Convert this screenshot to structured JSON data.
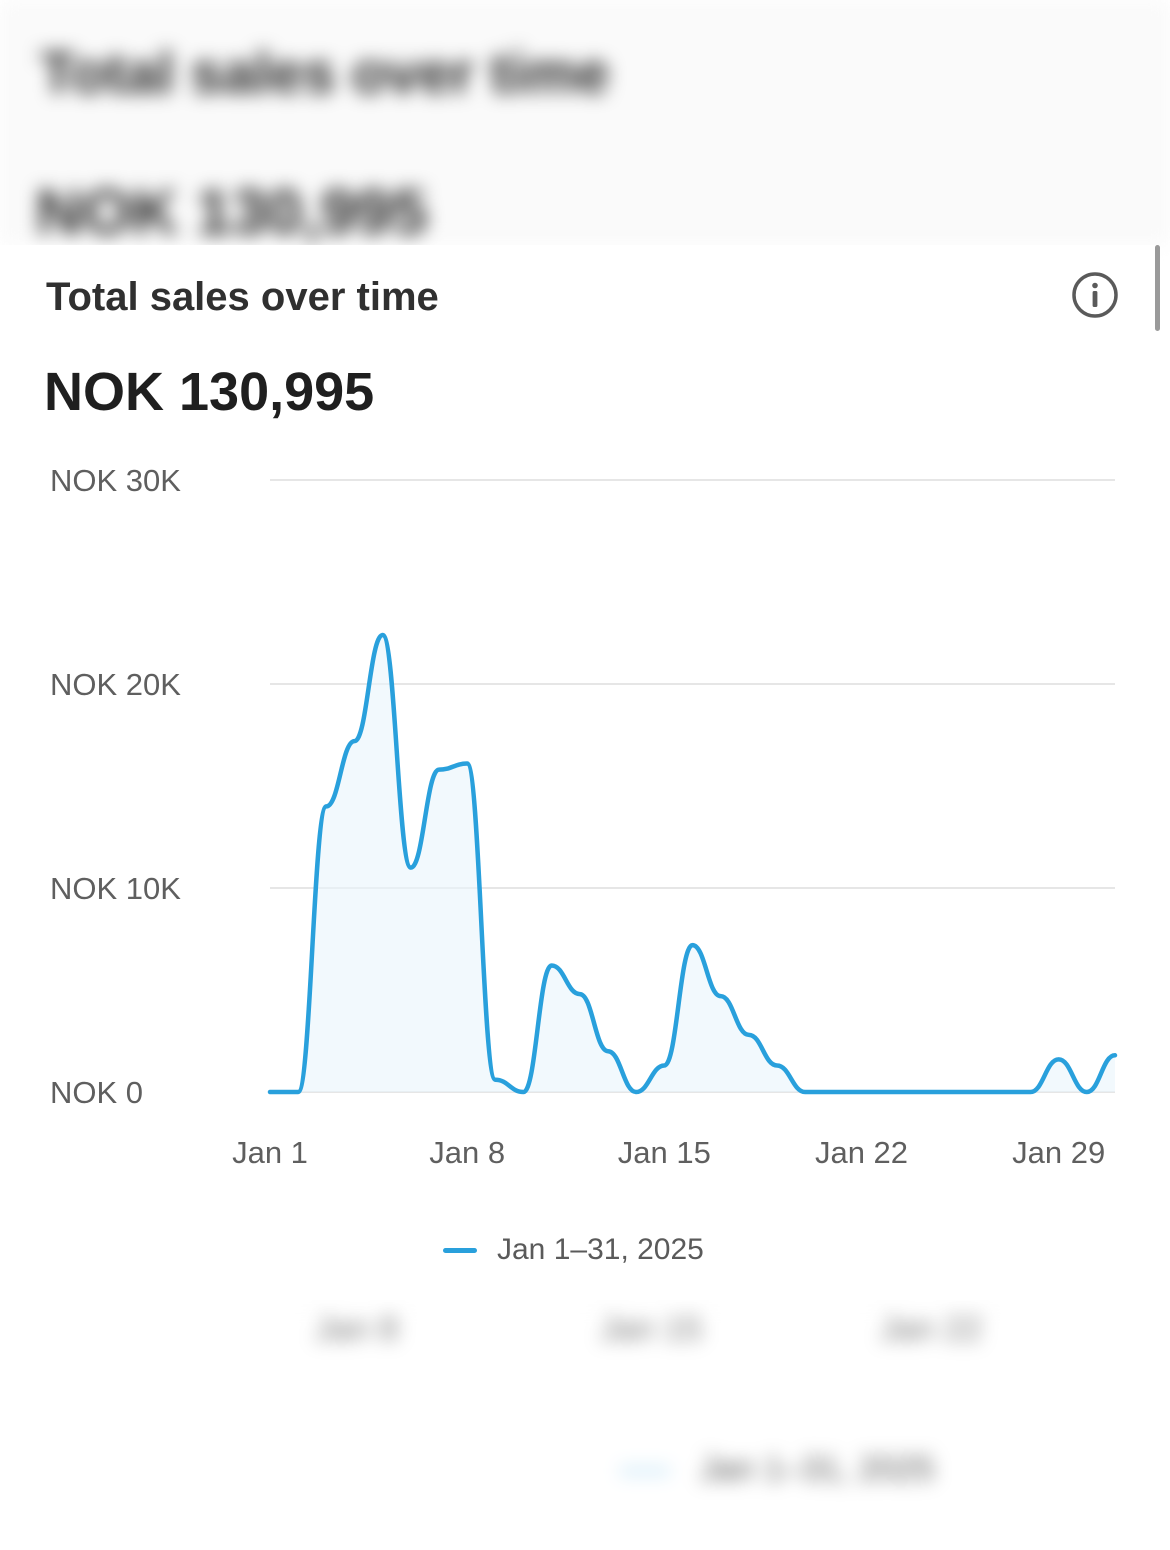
{
  "header": {
    "title": "Total sales over time",
    "total": "NOK 130,995",
    "info_icon": "info-circle-icon"
  },
  "colors": {
    "line": "#29a0dc",
    "area": "#eaf5fc",
    "grid": "#e6e6e6"
  },
  "chart_data": {
    "type": "line",
    "title": "Total sales over time",
    "xlabel": "",
    "ylabel": "",
    "x": [
      1,
      2,
      3,
      4,
      5,
      6,
      7,
      8,
      9,
      10,
      11,
      12,
      13,
      14,
      15,
      16,
      17,
      18,
      19,
      20,
      21,
      22,
      23,
      24,
      25,
      26,
      27,
      28,
      29,
      30,
      31
    ],
    "x_unit": "day of January 2025",
    "xticks": [
      {
        "value": 1,
        "label": "Jan 1"
      },
      {
        "value": 8,
        "label": "Jan 8"
      },
      {
        "value": 15,
        "label": "Jan 15"
      },
      {
        "value": 22,
        "label": "Jan 22"
      },
      {
        "value": 29,
        "label": "Jan 29"
      }
    ],
    "yticks": [
      {
        "value": 0,
        "label": "NOK 0"
      },
      {
        "value": 10000,
        "label": "NOK 10K"
      },
      {
        "value": 20000,
        "label": "NOK 20K"
      },
      {
        "value": 30000,
        "label": "NOK 30K"
      }
    ],
    "ylim": [
      0,
      30000
    ],
    "grid": true,
    "legend_position": "bottom-center",
    "series": [
      {
        "name": "Jan 1–31, 2025",
        "values": [
          0,
          0,
          14000,
          17200,
          22400,
          11000,
          15800,
          16100,
          600,
          0,
          6200,
          4800,
          2000,
          0,
          1300,
          7200,
          4700,
          2800,
          1300,
          0,
          0,
          0,
          0,
          0,
          0,
          0,
          0,
          0,
          1600,
          0,
          1800
        ]
      }
    ]
  }
}
